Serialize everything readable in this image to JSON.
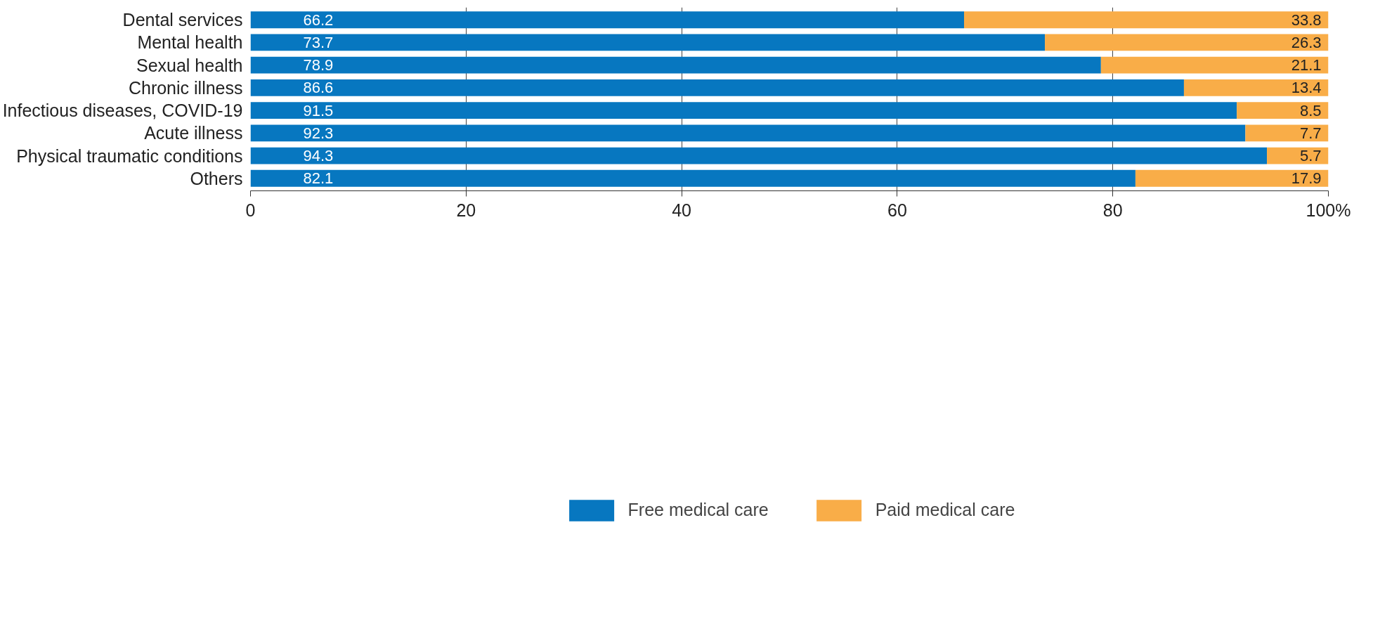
{
  "chart_data": {
    "type": "bar",
    "orientation": "horizontal",
    "stacked": true,
    "categories": [
      "Dental services",
      "Mental health",
      "Sexual health",
      "Chronic illness",
      "Infectious diseases, COVID-19",
      "Acute illness",
      "Physical traumatic conditions",
      "Others"
    ],
    "series": [
      {
        "name": "Free medical care",
        "color": "#0777c0",
        "values": [
          66.2,
          73.7,
          78.9,
          86.6,
          91.5,
          92.3,
          94.3,
          82.1
        ]
      },
      {
        "name": "Paid medical care",
        "color": "#f9ad48",
        "values": [
          33.8,
          26.3,
          21.1,
          13.4,
          8.5,
          7.7,
          5.7,
          17.9
        ]
      }
    ],
    "xlim": [
      0,
      100
    ],
    "xticks": [
      0,
      20,
      40,
      60,
      80,
      {
        "value": 100,
        "label": "100%"
      }
    ],
    "grid": "x",
    "legend": "bottom",
    "data_labels": true
  }
}
